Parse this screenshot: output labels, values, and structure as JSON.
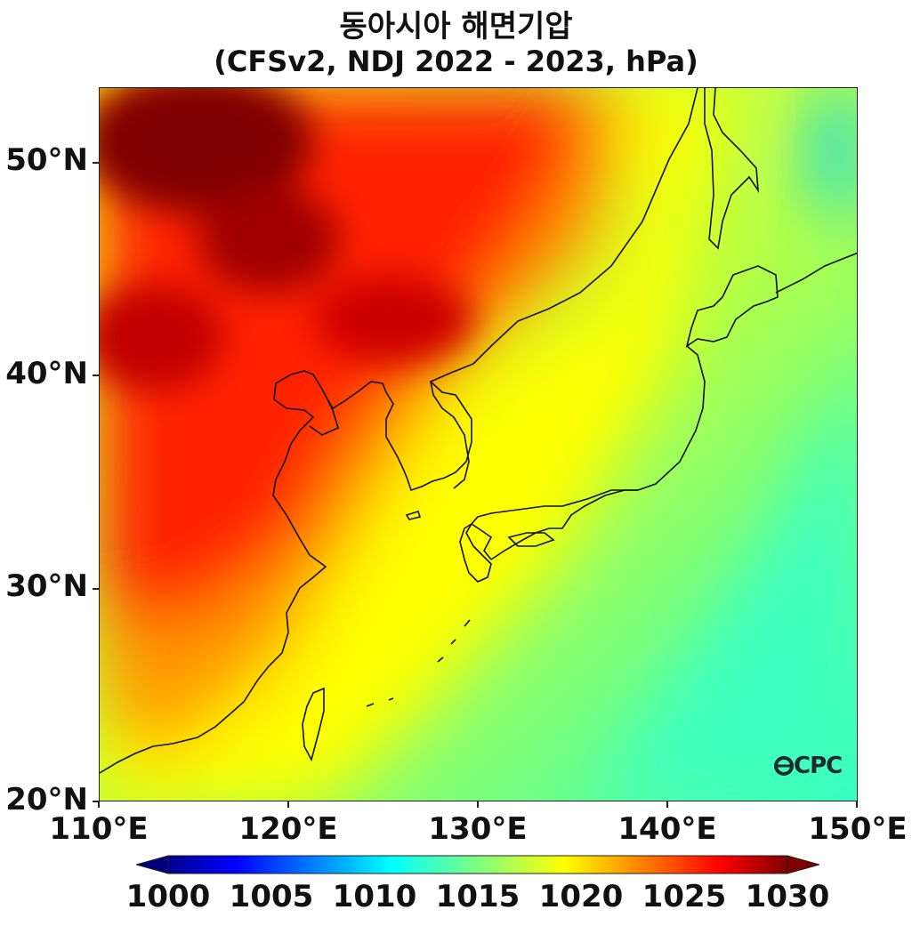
{
  "title": {
    "line1": "동아시아 해면기압",
    "line2": "(CFSv2, NDJ 2022 - 2023, hPa)"
  },
  "axes": {
    "lat_labels": [
      "50°N",
      "40°N",
      "30°N",
      "20°N"
    ],
    "lon_labels": [
      "110°E",
      "120°E",
      "130°E",
      "140°E",
      "150°E"
    ],
    "lat_range": [
      20,
      53.5
    ],
    "lon_range": [
      110,
      150
    ]
  },
  "colorbar": {
    "labels": [
      "1000",
      "1005",
      "1010",
      "1015",
      "1020",
      "1025",
      "1030"
    ],
    "min": 1000,
    "max": 1030,
    "colormap": "jet",
    "extend": "both"
  },
  "logo": {
    "text": "CPC",
    "icon": "cpc-logo-icon"
  },
  "colors": {
    "high": "#7f0000",
    "mid_high": "#ff2a00",
    "mid": "#ffff00",
    "mid_low": "#80ff80",
    "low": "#00e5ff",
    "coast": "#111111"
  }
}
